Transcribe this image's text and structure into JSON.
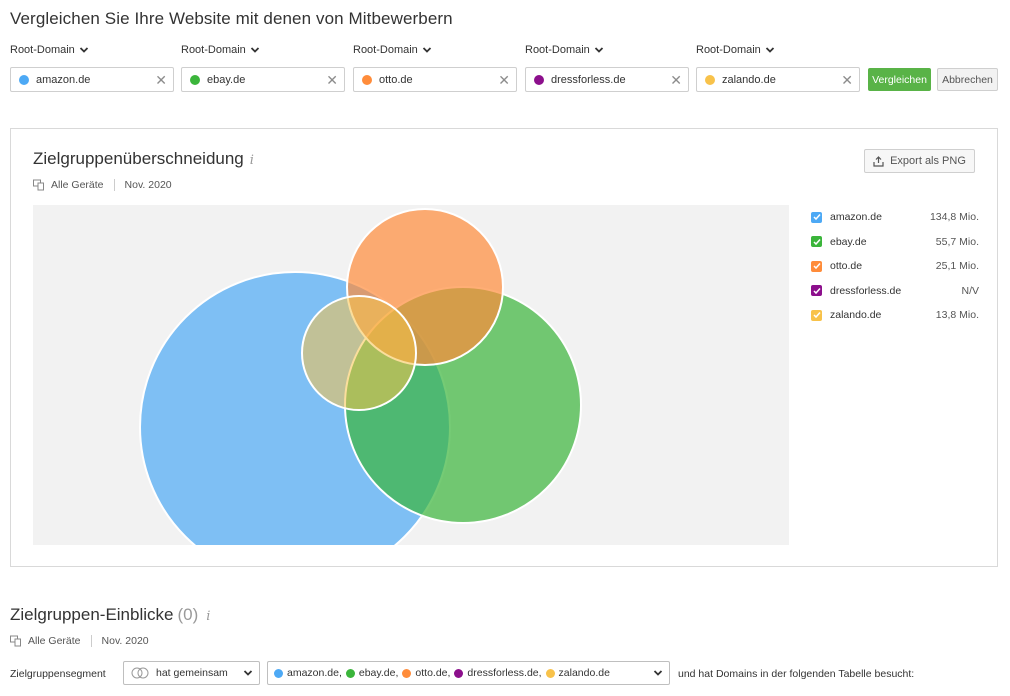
{
  "page": {
    "title": "Vergleichen Sie Ihre Website mit denen von Mitbewerbern"
  },
  "domains": [
    {
      "label": "Root-Domain",
      "value": "amazon.de",
      "color": "#4da9f5"
    },
    {
      "label": "Root-Domain",
      "value": "ebay.de",
      "color": "#3bb53b"
    },
    {
      "label": "Root-Domain",
      "value": "otto.de",
      "color": "#ff8c3a"
    },
    {
      "label": "Root-Domain",
      "value": "dressforless.de",
      "color": "#8c0f8c"
    },
    {
      "label": "Root-Domain",
      "value": "zalando.de",
      "color": "#f8c24a"
    }
  ],
  "actions": {
    "compare": "Vergleichen",
    "cancel": "Abbrechen"
  },
  "overlap": {
    "title": "Zielgruppenüberschneidung",
    "info_icon": "i",
    "devices": "Alle Geräte",
    "date": "Nov. 2020",
    "export": "Export als PNG",
    "legend": [
      {
        "name": "amazon.de",
        "value": "134,8 Mio.",
        "color": "#4da9f5"
      },
      {
        "name": "ebay.de",
        "value": "55,7 Mio.",
        "color": "#3bb53b"
      },
      {
        "name": "otto.de",
        "value": "25,1 Mio.",
        "color": "#ff8c3a"
      },
      {
        "name": "dressforless.de",
        "value": "N/V",
        "color": "#8c0f8c"
      },
      {
        "name": "zalando.de",
        "value": "13,8 Mio.",
        "color": "#f8c24a"
      }
    ]
  },
  "insights": {
    "title": "Zielgruppen-Einblicke",
    "count": "(0)",
    "info_icon": "i",
    "devices": "Alle Geräte",
    "date": "Nov. 2020",
    "segment_label": "Zielgruppensegment",
    "segment_value": "hat gemeinsam",
    "selected_domains": [
      {
        "name": "amazon.de,",
        "color": "#4da9f5"
      },
      {
        "name": "ebay.de,",
        "color": "#3bb53b"
      },
      {
        "name": "otto.de,",
        "color": "#ff8c3a"
      },
      {
        "name": "dressforless.de,",
        "color": "#8c0f8c"
      },
      {
        "name": "zalando.de",
        "color": "#f8c24a"
      }
    ],
    "after_text": "und hat Domains in der folgenden Tabelle besucht:"
  },
  "icons": {
    "dropdown": "chevron-down-icon",
    "remove": "close-icon",
    "export": "upload-icon",
    "devices": "devices-icon",
    "checkbox": "check-icon",
    "segment": "overlap-circles-icon"
  }
}
